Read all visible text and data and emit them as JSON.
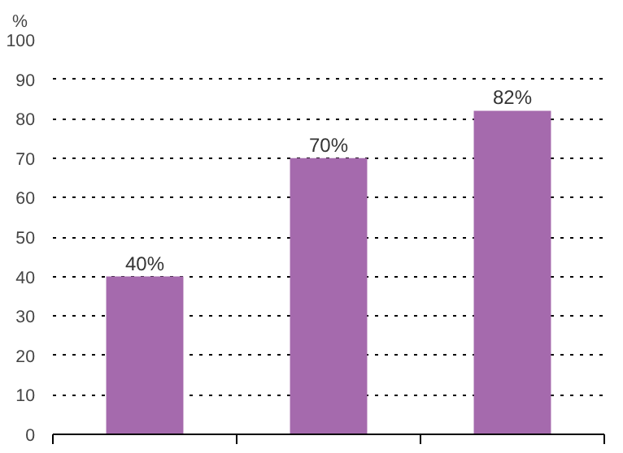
{
  "chart_data": {
    "type": "bar",
    "ylabel": "%",
    "categories": [
      null,
      null,
      null
    ],
    "values": [
      40,
      70,
      82
    ],
    "value_labels": [
      "40%",
      "70%",
      "82%"
    ],
    "color": "#a56aad",
    "ylim": [
      0,
      100
    ],
    "yticks": [
      0,
      10,
      20,
      30,
      40,
      50,
      60,
      70,
      80,
      90,
      100
    ],
    "grid": "y"
  }
}
